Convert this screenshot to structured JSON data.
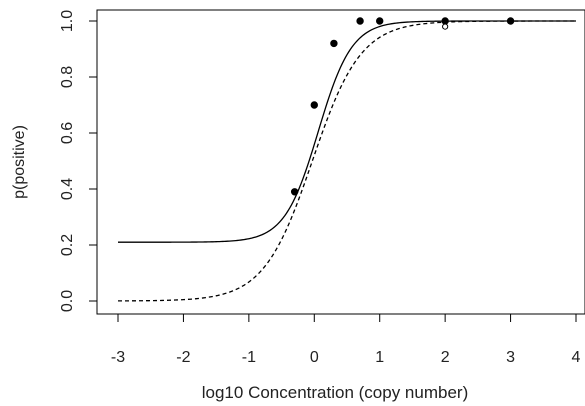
{
  "chart_data": {
    "type": "scatter",
    "title": "",
    "xlabel": "log10 Concentration (copy number)",
    "ylabel": "p(positive)",
    "xlim": [
      -3,
      4
    ],
    "ylim": [
      0.0,
      1.0
    ],
    "xticks": [
      -3,
      -2,
      -1,
      0,
      1,
      2,
      3,
      4
    ],
    "yticks": [
      0.0,
      0.2,
      0.4,
      0.6,
      0.8,
      1.0
    ],
    "xtick_labels": [
      "-3",
      "-2",
      "-1",
      "0",
      "1",
      "2",
      "3",
      "4"
    ],
    "ytick_labels": [
      "0.0",
      "0.2",
      "0.4",
      "0.6",
      "0.8",
      "1.0"
    ],
    "grid": false,
    "legend": "none",
    "series": [
      {
        "style": "filled-circle",
        "color": "#000000",
        "x": [
          -0.3,
          0.0,
          0.3,
          0.7,
          1.0,
          2.0,
          3.0
        ],
        "y": [
          0.39,
          0.7,
          0.92,
          1.0,
          1.0,
          1.0,
          1.0
        ]
      },
      {
        "style": "open-circle",
        "color": "#000000",
        "x": [
          2.0
        ],
        "y": [
          0.98
        ]
      },
      {
        "style": "solid-line",
        "color": "#000000",
        "curve": {
          "lower": 0.21,
          "upper": 1.0,
          "midpoint": 0.06,
          "slope": 3.9
        },
        "x": [
          -3,
          -1,
          -0.5,
          0,
          0.5,
          1,
          4
        ],
        "y": [
          0.21,
          0.25,
          0.31,
          0.61,
          0.96,
          1.0,
          1.0
        ]
      },
      {
        "style": "dashed-line",
        "color": "#000000",
        "curve": {
          "lower": 0.0,
          "upper": 1.0,
          "midpoint": -0.03,
          "slope": 2.7
        },
        "x": [
          -3,
          -1,
          -0.5,
          0,
          0.5,
          1,
          4
        ],
        "y": [
          0.0,
          0.07,
          0.22,
          0.52,
          0.92,
          0.98,
          1.0
        ]
      }
    ]
  }
}
